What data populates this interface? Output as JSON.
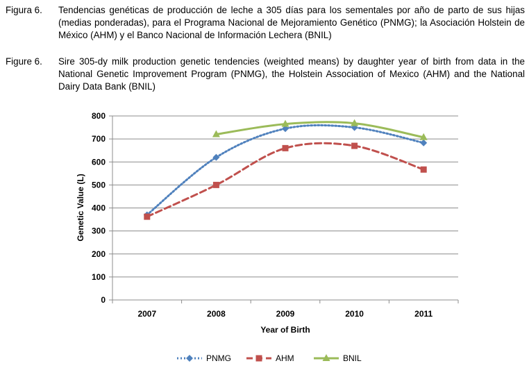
{
  "caption_es": {
    "label": "Figura 6.",
    "text": "Tendencias genéticas de producción de leche a 305 días para los sementales por año de parto de sus hijas (medias ponderadas), para el Programa Nacional de Mejoramiento Genético (PNMG); la Asociación Holstein de México (AHM) y el Banco Nacional de Información Lechera (BNIL)"
  },
  "caption_en": {
    "label": "Figure 6.",
    "text": "Sire 305-dy milk production genetic tendencies (weighted means) by daughter year of birth from data in the National Genetic Improvement Program (PNMG), the Holstein Association of Mexico (AHM) and the National Dairy Data Bank (BNIL)"
  },
  "chart_data": {
    "type": "line",
    "categories": [
      "2007",
      "2008",
      "2009",
      "2010",
      "2011"
    ],
    "xlabel": "Year of Birth",
    "ylabel": "Genetic Value (L)",
    "ylim": [
      0,
      800
    ],
    "yticks": [
      0,
      100,
      200,
      300,
      400,
      500,
      600,
      700,
      800
    ],
    "grid": true,
    "legend": "bottom",
    "series": [
      {
        "name": "PNMG",
        "values": [
          370,
          620,
          745,
          750,
          683
        ],
        "color": "#4f81bd",
        "marker": "diamond",
        "dash": "dotted"
      },
      {
        "name": "AHM",
        "values": [
          362,
          500,
          660,
          670,
          567
        ],
        "color": "#c0504d",
        "marker": "square",
        "dash": "dashed"
      },
      {
        "name": "BNIL",
        "values": [
          null,
          720,
          765,
          768,
          707
        ],
        "color": "#9bbb59",
        "marker": "triangle",
        "dash": "solid"
      }
    ]
  }
}
